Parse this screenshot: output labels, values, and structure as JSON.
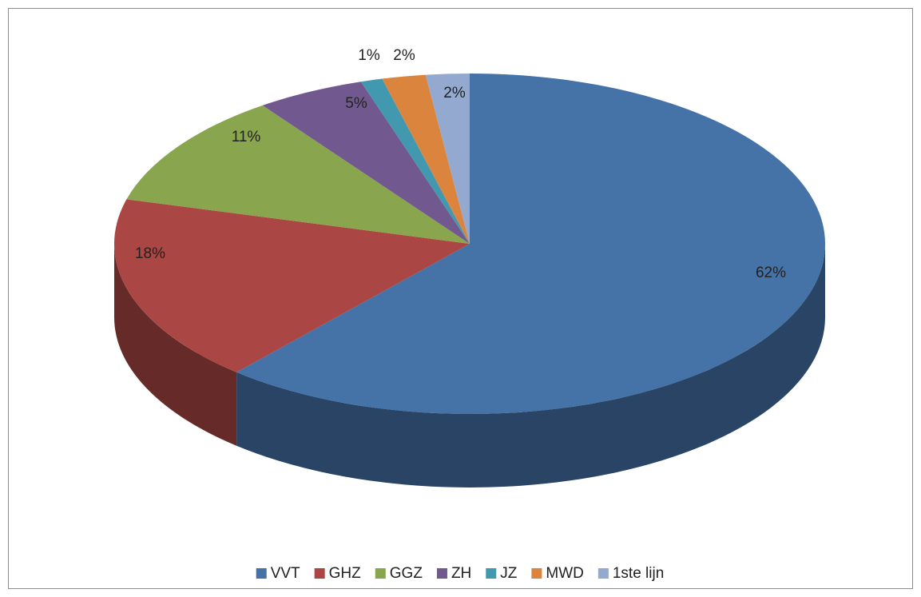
{
  "chart_data": {
    "type": "pie3d",
    "categories": [
      "VVT",
      "GHZ",
      "GGZ",
      "ZH",
      "JZ",
      "MWD",
      "1ste lijn"
    ],
    "values": [
      62,
      18,
      11,
      5,
      1,
      2,
      2
    ],
    "value_labels": [
      "62%",
      "18%",
      "11%",
      "5%",
      "1%",
      "2%",
      "2%"
    ],
    "colors": [
      "#4572a7",
      "#aa4643",
      "#89a54e",
      "#71588f",
      "#4198af",
      "#db843d",
      "#93a9cf"
    ],
    "legend": "bottom"
  }
}
